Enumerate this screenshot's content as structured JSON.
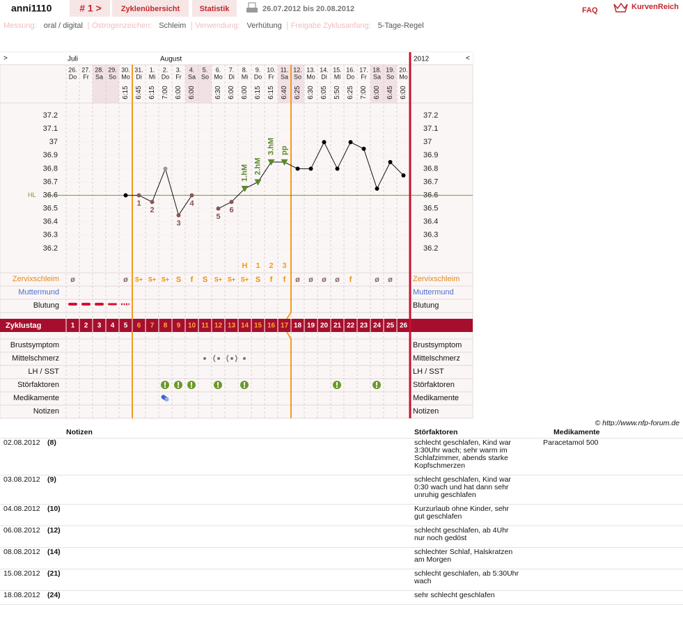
{
  "header": {
    "user": "anni1110",
    "cycle_nav": "# 1 >",
    "tabs": [
      "Zyklenübersicht",
      "Statistik"
    ],
    "date_range": "26.07.2012 bis 20.08.2012",
    "faq": "FAQ",
    "brand": "KurvenReich"
  },
  "settings": [
    {
      "label": "Messung:",
      "value": "oral / digital"
    },
    {
      "label": "Östrogenzeichen:",
      "value": "Schleim"
    },
    {
      "label": "Verwendung:",
      "value": "Verhütung"
    },
    {
      "label": "Freigabe Zyklusanfang:",
      "value": "5-Tage-Regel"
    }
  ],
  "chart": {
    "nav_prev": ">",
    "nav_next": "<",
    "year": "2012",
    "month_labels": [
      "Juli",
      null,
      null,
      null,
      null,
      null,
      null,
      "August",
      null,
      null,
      null,
      null,
      null,
      null,
      null,
      null,
      null,
      null,
      null,
      null,
      null,
      null,
      null,
      null,
      null,
      null
    ],
    "dates": [
      "26.",
      "27.",
      "28.",
      "29.",
      "30.",
      "31.",
      "1.",
      "2.",
      "3.",
      "4.",
      "5.",
      "6.",
      "7.",
      "8.",
      "9.",
      "10.",
      "11.",
      "12.",
      "13.",
      "14.",
      "15.",
      "16.",
      "17.",
      "18.",
      "19.",
      "20."
    ],
    "weekdays": [
      "Do",
      "Fr",
      "Sa",
      "So",
      "Mo",
      "Di",
      "Mi",
      "Do",
      "Fr",
      "Sa",
      "So",
      "Mo",
      "Di",
      "Mi",
      "Do",
      "Fr",
      "Sa",
      "So",
      "Mo",
      "Di",
      "Mi",
      "Do",
      "Fr",
      "Sa",
      "So",
      "Mo"
    ],
    "times": [
      null,
      null,
      null,
      null,
      "6:15",
      "6:45",
      "6:15",
      "7:00",
      "6:00",
      "6:00",
      null,
      "6:30",
      "6:00",
      "6:00",
      "6:15",
      "6:15",
      "6:40",
      "6:25",
      "6:30",
      "6:05",
      "5:50",
      "6:25",
      "7:00",
      "6:00",
      "6:45",
      "6:00"
    ],
    "temperatures": [
      null,
      null,
      null,
      null,
      36.6,
      36.6,
      36.55,
      36.8,
      36.45,
      36.6,
      null,
      36.5,
      36.55,
      36.65,
      36.7,
      36.85,
      36.85,
      36.8,
      36.8,
      37.0,
      36.8,
      37.0,
      36.95,
      36.65,
      36.85,
      36.75
    ],
    "point_colors": [
      null,
      null,
      null,
      null,
      "#000000",
      "#8a5555",
      "#8a5555",
      "#999999",
      "#8a5555",
      "#8a5555",
      null,
      "#8a5555",
      "#8a5555",
      "#5a8a2a",
      "#5a8a2a",
      "#5a8a2a",
      "#5a8a2a",
      "#000000",
      "#000000",
      "#000000",
      "#000000",
      "#000000",
      "#000000",
      "#000000",
      "#000000",
      "#000000"
    ],
    "point_shapes": [
      null,
      null,
      null,
      null,
      "circle",
      "circle",
      "circle",
      "circle",
      "circle",
      "circle",
      null,
      "circle",
      "circle",
      "triangle",
      "triangle",
      "triangle",
      "triangle",
      "circle",
      "circle",
      "circle",
      "circle",
      "circle",
      "circle",
      "circle",
      "circle",
      "circle"
    ],
    "low_labels": [
      null,
      null,
      null,
      null,
      null,
      "1",
      "2",
      null,
      "3",
      "4",
      null,
      "5",
      "6",
      null,
      null,
      null,
      null,
      null,
      null,
      null,
      null,
      null,
      null,
      null,
      null,
      null
    ],
    "peak_labels": [
      null,
      null,
      null,
      null,
      null,
      null,
      null,
      null,
      null,
      null,
      null,
      null,
      null,
      "1.hM",
      "2.hM",
      "3.hM",
      "pp",
      null,
      null,
      null,
      null,
      null,
      null,
      null,
      null,
      null
    ],
    "evaluation_labels": [
      null,
      null,
      null,
      null,
      null,
      null,
      null,
      null,
      null,
      null,
      null,
      null,
      null,
      "H",
      "1",
      "2",
      "3",
      null,
      null,
      null,
      null,
      null,
      null,
      null,
      null,
      null
    ],
    "ylim": [
      36.1,
      37.3
    ],
    "yticks": [
      36.2,
      36.3,
      36.4,
      36.5,
      36.6,
      36.7,
      36.8,
      36.9,
      37,
      37.1,
      37.2
    ],
    "grid": true,
    "coverline": 36.6,
    "coverline_label": "HL",
    "coverline_color": "#6a9a3a",
    "cervical_mucus": [
      "ø",
      null,
      null,
      null,
      "ø",
      "S+",
      "S+",
      "S+",
      "S",
      "f",
      "S",
      "S+",
      "S+",
      "S+",
      "S",
      "f",
      "f",
      "ø",
      "ø",
      "ø",
      "ø",
      "f",
      null,
      "ø",
      "ø",
      null
    ],
    "cycle_days": [
      1,
      2,
      3,
      4,
      5,
      6,
      7,
      8,
      9,
      10,
      11,
      12,
      13,
      14,
      15,
      16,
      17,
      18,
      19,
      20,
      21,
      22,
      23,
      24,
      25,
      26
    ],
    "fertile_window": [
      6,
      17
    ],
    "row_labels": {
      "mucus": "Zervixschleim",
      "cervix": "Muttermund",
      "bleeding": "Blutung",
      "cycle_day": "Zyklustag",
      "breast": "Brustsymptom",
      "pain": "Mittelschmerz",
      "lh": "LH / SST",
      "disturbances": "Störfaktoren",
      "medication": "Medikamente",
      "notes": "Notizen"
    },
    "copyright": "© http://www.nfp-forum.de"
  },
  "notes_table": {
    "headers": [
      "Notizen",
      "Störfaktoren",
      "Medikamente"
    ],
    "rows": [
      {
        "date": "02.08.2012",
        "cycle_day": "(8)",
        "disturbances": "schlecht geschlafen, Kind war 3:30Uhr wach; sehr warm im Schlafzimmer, abends starke Kopfschmerzen",
        "medication": "Paracetamol 500"
      },
      {
        "date": "03.08.2012",
        "cycle_day": "(9)",
        "disturbances": "schlecht geschlafen, Kind war 0:30 wach und hat dann sehr unruhig geschlafen"
      },
      {
        "date": "04.08.2012",
        "cycle_day": "(10)",
        "disturbances": "Kurzurlaub ohne Kinder, sehr gut geschlafen"
      },
      {
        "date": "06.08.2012",
        "cycle_day": "(12)",
        "disturbances": "schlecht geschlafen, ab 4Uhr nur noch gedöst"
      },
      {
        "date": "08.08.2012",
        "cycle_day": "(14)",
        "disturbances": "schlechter Schlaf, Halskratzen am Morgen"
      },
      {
        "date": "15.08.2012",
        "cycle_day": "(21)",
        "disturbances": "schlecht geschlafen, ab 5:30Uhr wach"
      },
      {
        "date": "18.08.2012",
        "cycle_day": "(24)",
        "disturbances": "sehr schlecht geschlafen"
      }
    ]
  }
}
